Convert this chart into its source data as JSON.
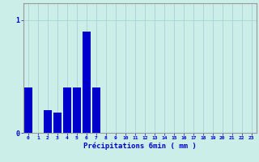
{
  "xlabel": "Précipitations 6min ( mm )",
  "background_color": "#cceee8",
  "bar_color": "#0000cc",
  "grid_color": "#aad8d4",
  "axis_color": "#999999",
  "text_color": "#0000cc",
  "hours": [
    0,
    1,
    2,
    3,
    4,
    5,
    6,
    7,
    8,
    9,
    10,
    11,
    12,
    13,
    14,
    15,
    16,
    17,
    18,
    19,
    20,
    21,
    22,
    23
  ],
  "values": [
    0.4,
    0.0,
    0.2,
    0.18,
    0.4,
    0.4,
    0.9,
    0.4,
    0.0,
    0.0,
    0.0,
    0.0,
    0.0,
    0.0,
    0.0,
    0.0,
    0.0,
    0.0,
    0.0,
    0.0,
    0.0,
    0.0,
    0.0,
    0.0
  ],
  "ylim": [
    0,
    1.15
  ],
  "yticks": [
    0,
    1
  ],
  "ytick_labels": [
    "0",
    "1"
  ],
  "xlim": [
    -0.5,
    23.5
  ]
}
